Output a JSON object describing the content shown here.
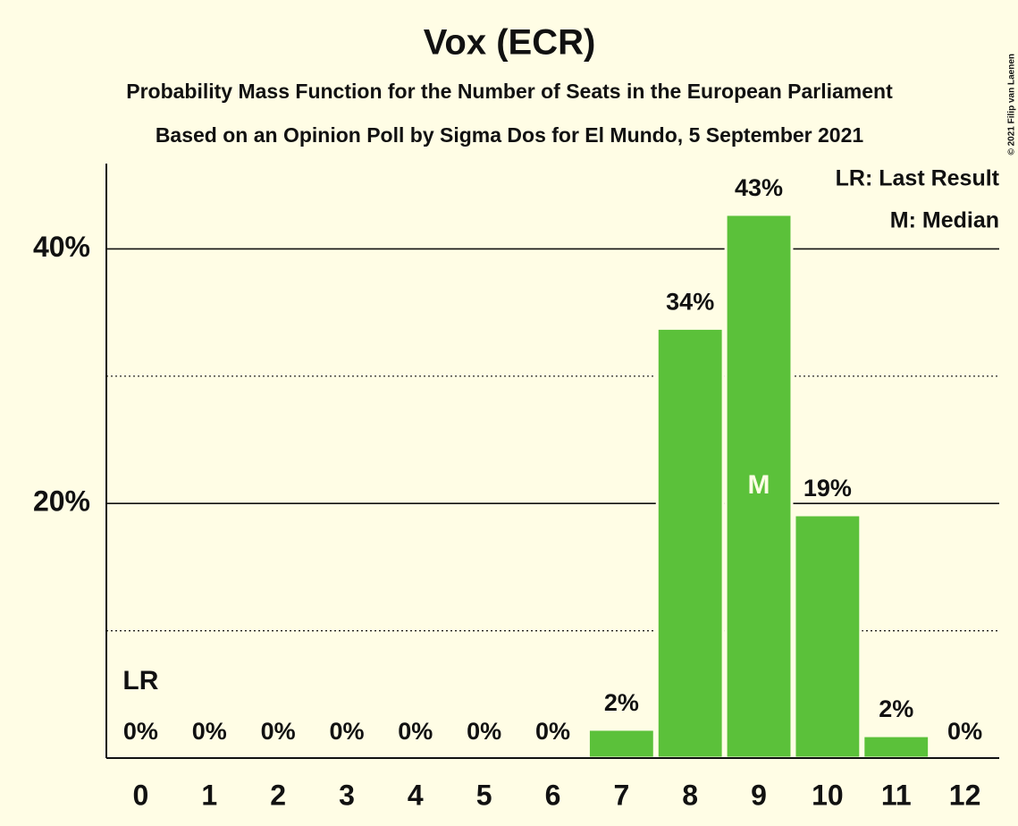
{
  "chart_data": {
    "type": "bar",
    "title": "Vox (ECR)",
    "subtitle": "Probability Mass Function for the Number of Seats in the European Parliament",
    "subtitle2": "Based on an Opinion Poll by Sigma Dos for El Mundo, 5 September 2021",
    "categories": [
      "0",
      "1",
      "2",
      "3",
      "4",
      "5",
      "6",
      "7",
      "8",
      "9",
      "10",
      "11",
      "12"
    ],
    "values": [
      0,
      0,
      0,
      0,
      0,
      0,
      0,
      2.25,
      33.75,
      42.7,
      19.1,
      1.75,
      0
    ],
    "value_labels": [
      "0%",
      "0%",
      "0%",
      "0%",
      "0%",
      "0%",
      "0%",
      "2%",
      "34%",
      "43%",
      "19%",
      "2%",
      "0%"
    ],
    "color": "#5bc13a",
    "ylim": [
      0,
      46.7
    ],
    "yticks": [
      {
        "value": 20,
        "label": "20%"
      },
      {
        "value": 40,
        "label": "40%"
      }
    ],
    "minor_yticks": [
      10,
      30
    ],
    "grid": true,
    "last_result_seats": 0,
    "last_result_label": "LR",
    "median_seats": 9,
    "median_label": "M",
    "legend": [
      "LR: Last Result",
      "M: Median"
    ],
    "copyright": "© 2021 Filip van Laenen"
  }
}
